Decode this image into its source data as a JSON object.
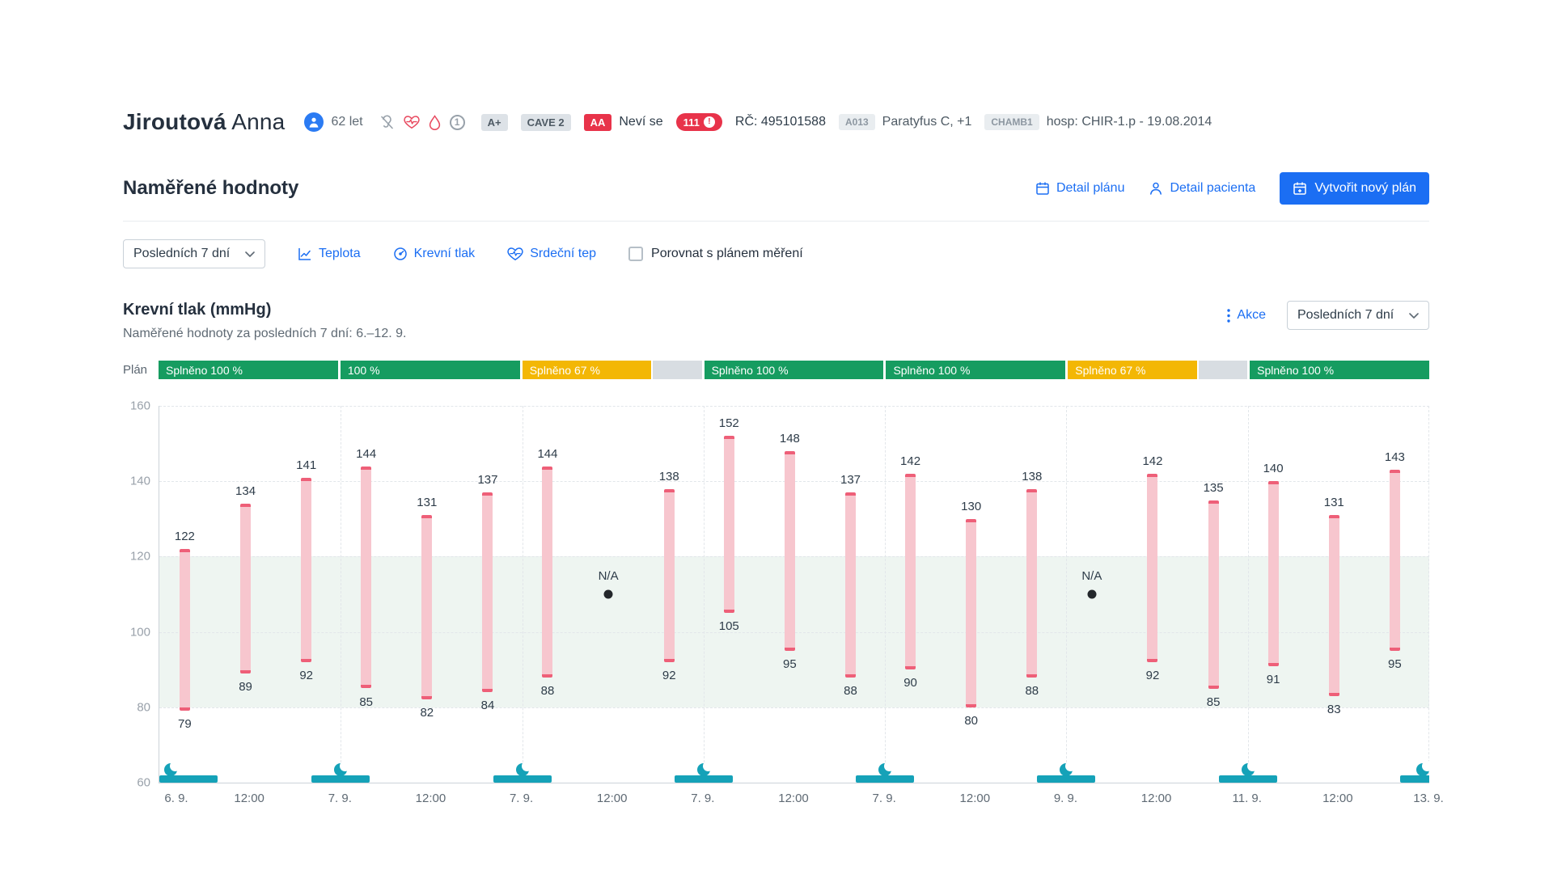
{
  "patient": {
    "last_name": "Jiroutová",
    "first_name": "Anna",
    "age": "62 let",
    "icon_count": "1",
    "blood_type": "A+",
    "cave": "CAVE 2",
    "allergy_badge": "AA",
    "allergy_text": "Neví se",
    "alert_count": "111",
    "alert_excl": "!",
    "personal_id": "RČ: 495101588",
    "diagnosis_code": "A013",
    "diagnosis": "Paratyfus C, +1",
    "room_code": "CHAMB1",
    "hospitalization": "hosp: CHIR-1.p - 19.08.2014"
  },
  "section": {
    "title": "Naměřené hodnoty",
    "detail_plan": "Detail plánu",
    "detail_patient": "Detail pacienta",
    "create_plan": "Vytvořit nový plán"
  },
  "filters": {
    "period": "Posledních 7 dní",
    "temperature": "Teplota",
    "blood_pressure": "Krevní tlak",
    "heart_rate": "Srdeční tep",
    "compare_label": "Porovnat s plánem měření"
  },
  "chart_header": {
    "title": "Krevní tlak (mmHg)",
    "subtitle": "Naměřené hodnoty za posledních 7 dní: 6.–12. 9.",
    "actions_label": "Akce",
    "period": "Posledních 7 dní"
  },
  "plan": {
    "label": "Plán",
    "segments": [
      {
        "label": "Splněno 100 %",
        "status": "success",
        "fill": 1
      },
      {
        "label": "100 %",
        "status": "success",
        "fill": 1
      },
      {
        "label": "Splněno 67 %",
        "status": "warning",
        "fill": 0.72
      },
      {
        "label": "Splněno 100 %",
        "status": "success",
        "fill": 1
      },
      {
        "label": "Splněno 100 %",
        "status": "success",
        "fill": 1
      },
      {
        "label": "Splněno 67 %",
        "status": "warning",
        "fill": 0.72
      },
      {
        "label": "Splněno 100 %",
        "status": "success",
        "fill": 1
      }
    ]
  },
  "chart_data": {
    "type": "bar",
    "subtype": "floating-range-bars (systolic/diastolic blood pressure)",
    "title": "Krevní tlak (mmHg)",
    "ylabel": "mmHg",
    "ylim": [
      60,
      160
    ],
    "yticks": [
      160,
      140,
      120,
      100,
      80,
      60
    ],
    "normal_band": [
      80,
      120
    ],
    "grid": "dashed horizontal and vertical day lines",
    "slot_fractions": [
      0.14,
      0.475,
      0.81
    ],
    "x_tick_labels": [
      "6. 9.",
      "12:00",
      "7. 9.",
      "12:00",
      "7. 9.",
      "12:00",
      "7. 9.",
      "12:00",
      "7. 9.",
      "12:00",
      "9. 9.",
      "12:00",
      "11. 9.",
      "12:00",
      "13. 9."
    ],
    "na_label": "N/A",
    "na_value": 110,
    "days": [
      [
        [
          122,
          79
        ],
        [
          134,
          89
        ],
        [
          141,
          92
        ]
      ],
      [
        [
          144,
          85
        ],
        [
          131,
          82
        ],
        [
          137,
          84
        ]
      ],
      [
        [
          144,
          88
        ],
        null,
        [
          138,
          92
        ]
      ],
      [
        [
          152,
          105
        ],
        [
          148,
          95
        ],
        [
          137,
          88
        ]
      ],
      [
        [
          142,
          90
        ],
        [
          130,
          80
        ],
        [
          138,
          88
        ]
      ],
      [
        null,
        [
          142,
          92
        ],
        [
          135,
          85
        ]
      ],
      [
        [
          140,
          91
        ],
        [
          131,
          83
        ],
        [
          143,
          95
        ]
      ]
    ]
  },
  "colors": {
    "accent": "#1b6ef3",
    "green": "#169c60",
    "yellow": "#f3b705",
    "seg_gray": "#d8dde2",
    "bar_fill": "#f7c6ce",
    "bar_cap": "#ee5f78",
    "teal": "#15a2b8",
    "band": "#eef5f1",
    "na": "#23272b",
    "red_badge": "#e8334a"
  }
}
